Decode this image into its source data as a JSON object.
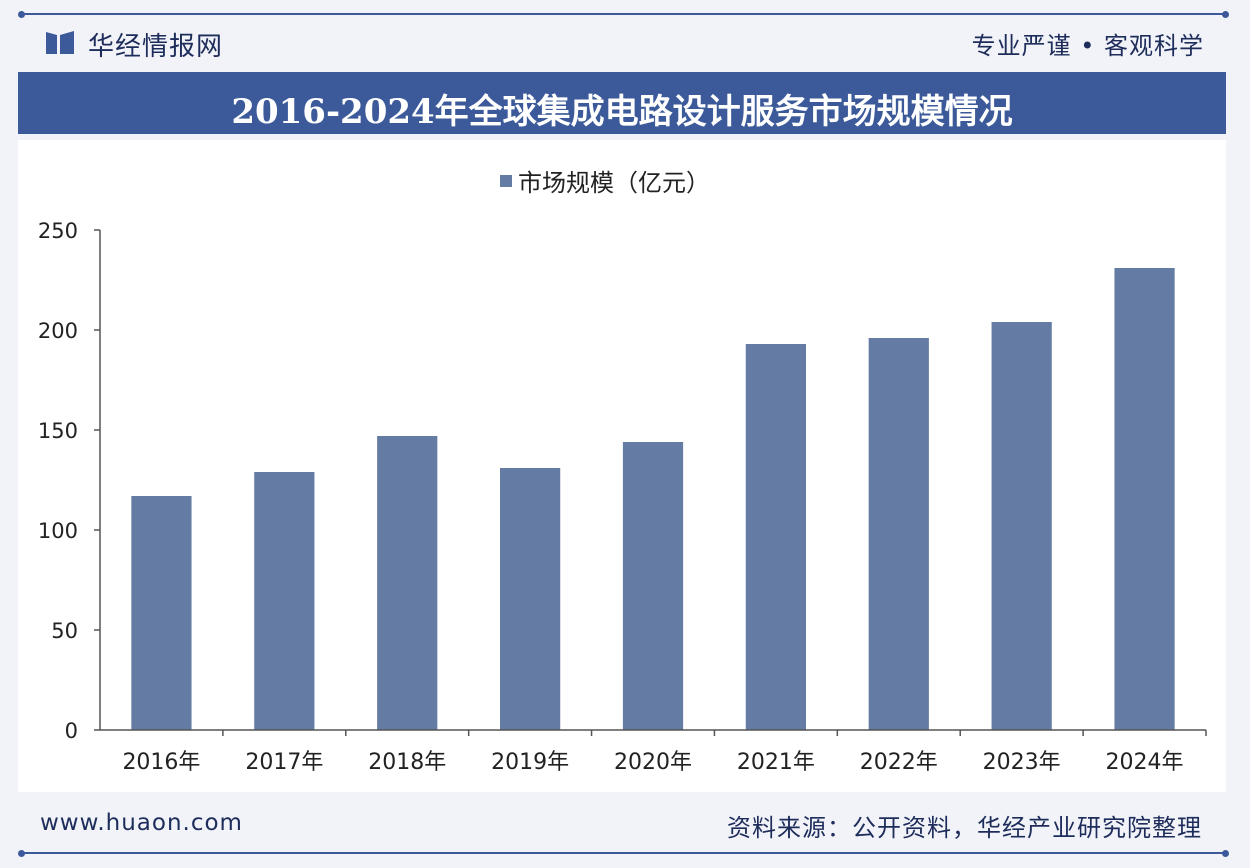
{
  "header": {
    "brand": "华经情报网",
    "tagline": "专业严谨 • 客观科学"
  },
  "title": "2016-2024年全球集成电路设计服务市场规模情况",
  "chart_data": {
    "type": "bar",
    "title": "2016-2024年全球集成电路设计服务市场规模情况",
    "legend": "市场规模（亿元）",
    "legend_position": "top-center",
    "categories": [
      "2016年",
      "2017年",
      "2018年",
      "2019年",
      "2020年",
      "2021年",
      "2022年",
      "2023年",
      "2024年"
    ],
    "series": [
      {
        "name": "市场规模（亿元）",
        "values": [
          117,
          129,
          147,
          131,
          144,
          193,
          196,
          204,
          231
        ]
      }
    ],
    "ylim": [
      0,
      250
    ],
    "yticks": [
      "0",
      "50",
      "100",
      "150",
      "200",
      "250"
    ],
    "xlabel": "",
    "ylabel": "",
    "grid": false,
    "bar_color": "#647ba3"
  },
  "footer": {
    "website": "www.huaon.com",
    "source": "资料来源：公开资料，华经产业研究院整理"
  },
  "colors": {
    "accent": "#3c5a9a",
    "bar": "#647ba3",
    "text": "#1d2c5a"
  }
}
